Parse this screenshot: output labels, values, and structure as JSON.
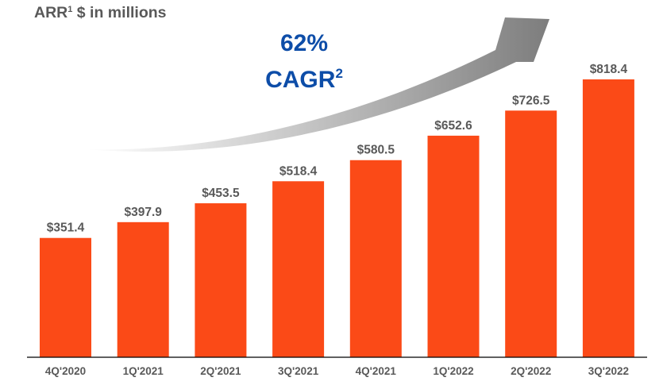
{
  "chart_data": {
    "type": "bar",
    "title": "ARR",
    "title_footnote": "1",
    "subtitle": "$ in millions",
    "xlabel": "",
    "ylabel": "",
    "ylim": [
      0,
      818.4
    ],
    "grid": false,
    "categories": [
      "4Q'2020",
      "1Q'2021",
      "2Q'2021",
      "3Q'2021",
      "4Q'2021",
      "1Q'2022",
      "2Q'2022",
      "3Q'2022"
    ],
    "values": [
      351.4,
      397.9,
      453.5,
      518.4,
      580.5,
      652.6,
      726.5,
      818.4
    ],
    "data_labels": [
      "$351.4",
      "$397.9",
      "$453.5",
      "$518.4",
      "$580.5",
      "$652.6",
      "$726.5",
      "$818.4"
    ],
    "annotation": {
      "value": "62%",
      "label": "CAGR",
      "footnote": "2",
      "shape": "curved-growth-arrow"
    },
    "colors": {
      "bar": "#FB4A17",
      "data_label": "#595959",
      "annotation": "#0D4DA8",
      "arrow": "#808080",
      "axis": "#000000"
    }
  }
}
